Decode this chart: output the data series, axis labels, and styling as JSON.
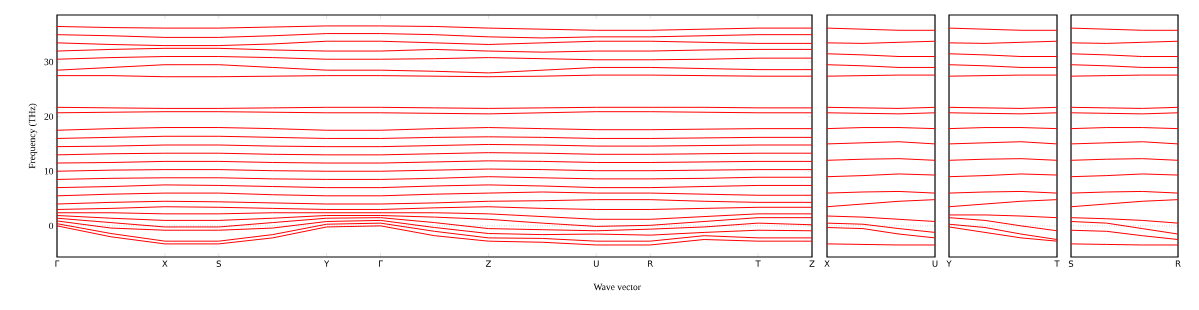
{
  "chart_data": [
    {
      "type": "line",
      "xlabel": "Wave vector",
      "ylabel": "Frequency (THz)",
      "line_style": "solid",
      "categories": [
        "Γ",
        null,
        "X",
        "S",
        null,
        "Y",
        "Γ",
        null,
        "Z",
        null,
        "U",
        "R",
        null,
        "T",
        "Z"
      ],
      "ylim": [
        -5.7,
        38.6
      ],
      "yticks": [
        0,
        10,
        20,
        30
      ],
      "ref_lines": [
        {
          "axis": "y",
          "value": 0,
          "color": "#000000",
          "line_style": "dotted"
        }
      ],
      "series": [
        {
          "color": "#ff0000",
          "values": [
            0,
            -2,
            -3.3,
            -3.3,
            -2.2,
            -0.2,
            0,
            -1.8,
            -2.8,
            -3.0,
            -3.5,
            -3.5,
            -2.5,
            -2.8,
            -2.8
          ]
        },
        {
          "color": "#ff0000",
          "values": [
            0.4,
            -1.4,
            -2.8,
            -2.8,
            -1.6,
            0.3,
            0.5,
            -1.0,
            -2.2,
            -2.3,
            -2.8,
            -2.8,
            -1.8,
            -2.2,
            -2.2
          ]
        },
        {
          "color": "#ff0000",
          "values": [
            0.9,
            -0.4,
            -0.8,
            -0.8,
            -0.4,
            0.8,
            1.0,
            -0.3,
            -1.4,
            -1.6,
            -1.5,
            -1.7,
            -1.2,
            -0.8,
            -0.9
          ]
        },
        {
          "color": "#ff0000",
          "values": [
            1.4,
            0.6,
            -0.2,
            -0.2,
            0.6,
            1.4,
            1.5,
            0.6,
            -0.5,
            -0.7,
            -0.9,
            -0.6,
            -0.2,
            0.5,
            0.2
          ]
        },
        {
          "color": "#ff0000",
          "values": [
            1.9,
            1.4,
            1.0,
            1.0,
            1.4,
            1.9,
            1.9,
            1.6,
            1.2,
            0.5,
            -0.1,
            0.1,
            0.8,
            1.5,
            1.5
          ]
        },
        {
          "color": "#ff0000",
          "values": [
            2.4,
            2.4,
            2.2,
            2.2,
            2.4,
            2.4,
            2.4,
            2.4,
            2.2,
            1.7,
            1.2,
            1.2,
            1.7,
            2.2,
            2.2
          ]
        },
        {
          "color": "#ff0000",
          "values": [
            3.0,
            3.2,
            3.5,
            3.4,
            3.2,
            3.0,
            3.0,
            3.3,
            3.5,
            3.2,
            3.0,
            3.0,
            3.2,
            3.4,
            3.4
          ]
        },
        {
          "color": "#ff0000",
          "values": [
            4.0,
            4.3,
            4.5,
            4.4,
            4.2,
            4.0,
            4.0,
            4.2,
            4.5,
            4.6,
            4.8,
            4.8,
            4.5,
            4.3,
            4.3
          ]
        },
        {
          "color": "#ff0000",
          "values": [
            5.5,
            5.8,
            6.0,
            6.0,
            5.7,
            5.5,
            5.5,
            5.8,
            6.0,
            6.2,
            6.0,
            6.0,
            5.8,
            5.6,
            5.6
          ]
        },
        {
          "color": "#ff0000",
          "values": [
            7.0,
            7.2,
            7.5,
            7.4,
            7.2,
            7.0,
            7.0,
            7.3,
            7.5,
            7.3,
            7.0,
            7.0,
            7.2,
            7.4,
            7.4
          ]
        },
        {
          "color": "#ff0000",
          "values": [
            8.5,
            8.7,
            8.8,
            8.8,
            8.6,
            8.5,
            8.5,
            8.7,
            9.0,
            8.8,
            8.6,
            8.6,
            8.7,
            8.9,
            8.9
          ]
        },
        {
          "color": "#ff0000",
          "values": [
            10.0,
            10.2,
            10.3,
            10.3,
            10.1,
            10.0,
            10.0,
            10.2,
            10.4,
            10.3,
            10.1,
            10.1,
            10.2,
            10.3,
            10.3
          ]
        },
        {
          "color": "#ff0000",
          "values": [
            11.5,
            11.6,
            11.8,
            11.8,
            11.6,
            11.5,
            11.5,
            11.7,
            11.9,
            11.8,
            11.6,
            11.6,
            11.7,
            11.8,
            11.8
          ]
        },
        {
          "color": "#ff0000",
          "values": [
            13.0,
            13.2,
            13.3,
            13.3,
            13.1,
            13.0,
            13.0,
            13.2,
            13.4,
            13.3,
            13.1,
            13.1,
            13.2,
            13.3,
            13.3
          ]
        },
        {
          "color": "#ff0000",
          "values": [
            14.5,
            14.6,
            14.8,
            14.8,
            14.6,
            14.5,
            14.5,
            14.7,
            14.9,
            14.8,
            14.6,
            14.6,
            14.7,
            14.8,
            14.8
          ]
        },
        {
          "color": "#ff0000",
          "values": [
            16.0,
            16.2,
            16.4,
            16.4,
            16.2,
            16.0,
            16.0,
            16.2,
            16.3,
            16.2,
            16.0,
            16.0,
            16.1,
            16.2,
            16.2
          ]
        },
        {
          "color": "#ff0000",
          "values": [
            17.5,
            17.8,
            18.0,
            18.0,
            17.8,
            17.5,
            17.5,
            17.8,
            18.0,
            17.8,
            17.6,
            17.6,
            17.7,
            17.8,
            17.8
          ]
        },
        {
          "color": "#ff0000",
          "values": [
            20.7,
            20.8,
            20.9,
            20.9,
            20.8,
            20.7,
            20.7,
            20.6,
            20.5,
            20.7,
            20.9,
            20.9,
            20.8,
            20.7,
            20.7
          ]
        },
        {
          "color": "#ff0000",
          "values": [
            21.7,
            21.6,
            21.5,
            21.5,
            21.6,
            21.7,
            21.7,
            21.6,
            21.5,
            21.6,
            21.7,
            21.7,
            21.7,
            21.6,
            21.6
          ]
        },
        {
          "color": "#ff0000",
          "values": [
            27.5,
            27.5,
            27.3,
            27.3,
            27.4,
            27.5,
            27.5,
            27.4,
            27.3,
            27.4,
            27.6,
            27.6,
            27.5,
            27.4,
            27.4
          ]
        },
        {
          "color": "#ff0000",
          "values": [
            28.5,
            29.0,
            29.5,
            29.5,
            29.0,
            28.5,
            28.5,
            28.3,
            28.0,
            28.5,
            29.0,
            29.0,
            28.8,
            28.6,
            28.6
          ]
        },
        {
          "color": "#ff0000",
          "values": [
            30.5,
            30.8,
            31.0,
            31.0,
            30.8,
            30.5,
            30.5,
            30.6,
            30.8,
            30.6,
            30.4,
            30.4,
            30.5,
            30.7,
            30.7
          ]
        },
        {
          "color": "#ff0000",
          "values": [
            32.0,
            32.3,
            32.5,
            32.5,
            32.2,
            32.0,
            32.0,
            32.3,
            32.0,
            31.8,
            32.0,
            32.0,
            32.2,
            32.3,
            32.3
          ]
        },
        {
          "color": "#ff0000",
          "values": [
            33.5,
            33.2,
            33.0,
            33.0,
            33.3,
            33.8,
            33.8,
            33.5,
            33.2,
            33.5,
            33.8,
            33.8,
            33.6,
            33.4,
            33.4
          ]
        },
        {
          "color": "#ff0000",
          "values": [
            35.0,
            34.8,
            34.5,
            34.5,
            34.8,
            35.2,
            35.2,
            35.0,
            34.6,
            34.4,
            34.6,
            34.6,
            34.8,
            35.0,
            35.0
          ]
        },
        {
          "color": "#ff0000",
          "values": [
            36.5,
            36.3,
            36.2,
            36.2,
            36.4,
            36.6,
            36.6,
            36.5,
            36.2,
            36.0,
            35.8,
            35.8,
            36.0,
            36.2,
            36.2
          ]
        }
      ]
    },
    {
      "type": "line",
      "line_style": "solid",
      "tick_labels": "x",
      "categories": [
        "X",
        null,
        null,
        "U"
      ],
      "ylim": [
        -5.7,
        38.6
      ],
      "ref_lines": [
        {
          "axis": "y",
          "value": 0,
          "color": "#000000",
          "line_style": "dotted"
        }
      ],
      "series": [
        {
          "color": "#ff0000",
          "values": [
            -3.3,
            -3.4,
            -3.5,
            -3.5
          ]
        },
        {
          "color": "#ff0000",
          "values": [
            -0.3,
            -0.5,
            -1.5,
            -2.2
          ]
        },
        {
          "color": "#ff0000",
          "values": [
            0.5,
            0.3,
            -0.5,
            -1.2
          ]
        },
        {
          "color": "#ff0000",
          "values": [
            1.8,
            1.6,
            1.2,
            0.8
          ]
        },
        {
          "color": "#ff0000",
          "values": [
            3.5,
            4,
            4.5,
            4.8
          ]
        },
        {
          "color": "#ff0000",
          "values": [
            6,
            6.2,
            6.3,
            6
          ]
        },
        {
          "color": "#ff0000",
          "values": [
            9,
            9.2,
            9.5,
            9.3
          ]
        },
        {
          "color": "#ff0000",
          "values": [
            12,
            12.2,
            12.3,
            12
          ]
        },
        {
          "color": "#ff0000",
          "values": [
            15,
            15.2,
            15.4,
            15
          ]
        },
        {
          "color": "#ff0000",
          "values": [
            17.8,
            18,
            18,
            17.8
          ]
        },
        {
          "color": "#ff0000",
          "values": [
            20.7,
            20.6,
            20.5,
            20.7
          ]
        },
        {
          "color": "#ff0000",
          "values": [
            21.7,
            21.6,
            21.5,
            21.7
          ]
        },
        {
          "color": "#ff0000",
          "values": [
            27.4,
            27.5,
            27.6,
            27.6
          ]
        },
        {
          "color": "#ff0000",
          "values": [
            29.5,
            29.3,
            29.0,
            29.0
          ]
        },
        {
          "color": "#ff0000",
          "values": [
            31.5,
            31.3,
            31.0,
            31.0
          ]
        },
        {
          "color": "#ff0000",
          "values": [
            33.5,
            33.4,
            33.6,
            33.8
          ]
        },
        {
          "color": "#ff0000",
          "values": [
            36.2,
            36.0,
            35.8,
            35.8
          ]
        }
      ]
    },
    {
      "type": "line",
      "line_style": "solid",
      "tick_labels": "x",
      "categories": [
        "Y",
        null,
        null,
        "T"
      ],
      "ylim": [
        -5.7,
        38.6
      ],
      "ref_lines": [
        {
          "axis": "y",
          "value": 0,
          "color": "#000000",
          "line_style": "dotted"
        }
      ],
      "series": [
        {
          "color": "#ff0000",
          "values": [
            -0.2,
            -1.2,
            -2.2,
            -2.8
          ]
        },
        {
          "color": "#ff0000",
          "values": [
            0.3,
            -0.3,
            -1.5,
            -2.5
          ]
        },
        {
          "color": "#ff0000",
          "values": [
            1.5,
            1.0,
            0,
            -0.9
          ]
        },
        {
          "color": "#ff0000",
          "values": [
            2.0,
            2.0,
            1.8,
            1.5
          ]
        },
        {
          "color": "#ff0000",
          "values": [
            3.5,
            4,
            4.5,
            4.8
          ]
        },
        {
          "color": "#ff0000",
          "values": [
            6,
            6.2,
            6.3,
            6
          ]
        },
        {
          "color": "#ff0000",
          "values": [
            9,
            9.2,
            9.5,
            9.3
          ]
        },
        {
          "color": "#ff0000",
          "values": [
            12,
            12.2,
            12.3,
            12
          ]
        },
        {
          "color": "#ff0000",
          "values": [
            15,
            15.2,
            15.4,
            15
          ]
        },
        {
          "color": "#ff0000",
          "values": [
            17.8,
            18,
            18,
            17.8
          ]
        },
        {
          "color": "#ff0000",
          "values": [
            20.7,
            20.6,
            20.5,
            20.7
          ]
        },
        {
          "color": "#ff0000",
          "values": [
            21.7,
            21.6,
            21.5,
            21.7
          ]
        },
        {
          "color": "#ff0000",
          "values": [
            27.4,
            27.5,
            27.6,
            27.6
          ]
        },
        {
          "color": "#ff0000",
          "values": [
            29.5,
            29.3,
            29.0,
            29.0
          ]
        },
        {
          "color": "#ff0000",
          "values": [
            31.5,
            31.3,
            31.0,
            31.0
          ]
        },
        {
          "color": "#ff0000",
          "values": [
            33.5,
            33.4,
            33.6,
            33.8
          ]
        },
        {
          "color": "#ff0000",
          "values": [
            36.2,
            36.0,
            35.8,
            35.8
          ]
        }
      ]
    },
    {
      "type": "line",
      "line_style": "solid",
      "tick_labels": "x",
      "categories": [
        "S",
        null,
        null,
        "R"
      ],
      "ylim": [
        -5.7,
        38.6
      ],
      "ref_lines": [
        {
          "axis": "y",
          "value": 0,
          "color": "#000000",
          "line_style": "dotted"
        }
      ],
      "series": [
        {
          "color": "#ff0000",
          "values": [
            -3.3,
            -3.4,
            -3.5,
            -3.5
          ]
        },
        {
          "color": "#ff0000",
          "values": [
            -0.8,
            -1.0,
            -1.8,
            -2.5
          ]
        },
        {
          "color": "#ff0000",
          "values": [
            0.8,
            0.5,
            -0.5,
            -1.5
          ]
        },
        {
          "color": "#ff0000",
          "values": [
            1.5,
            1.3,
            1.0,
            0.5
          ]
        },
        {
          "color": "#ff0000",
          "values": [
            3.5,
            4,
            4.5,
            4.8
          ]
        },
        {
          "color": "#ff0000",
          "values": [
            6,
            6.2,
            6.3,
            6
          ]
        },
        {
          "color": "#ff0000",
          "values": [
            9,
            9.2,
            9.5,
            9.3
          ]
        },
        {
          "color": "#ff0000",
          "values": [
            12,
            12.2,
            12.3,
            12
          ]
        },
        {
          "color": "#ff0000",
          "values": [
            15,
            15.2,
            15.4,
            15
          ]
        },
        {
          "color": "#ff0000",
          "values": [
            17.8,
            18,
            18,
            17.8
          ]
        },
        {
          "color": "#ff0000",
          "values": [
            20.7,
            20.6,
            20.5,
            20.7
          ]
        },
        {
          "color": "#ff0000",
          "values": [
            21.7,
            21.6,
            21.5,
            21.7
          ]
        },
        {
          "color": "#ff0000",
          "values": [
            27.4,
            27.5,
            27.6,
            27.6
          ]
        },
        {
          "color": "#ff0000",
          "values": [
            29.5,
            29.3,
            29.0,
            29.0
          ]
        },
        {
          "color": "#ff0000",
          "values": [
            31.5,
            31.3,
            31.0,
            31.0
          ]
        },
        {
          "color": "#ff0000",
          "values": [
            33.5,
            33.4,
            33.6,
            33.8
          ]
        },
        {
          "color": "#ff0000",
          "values": [
            36.2,
            36.0,
            35.8,
            35.8
          ]
        }
      ]
    }
  ]
}
